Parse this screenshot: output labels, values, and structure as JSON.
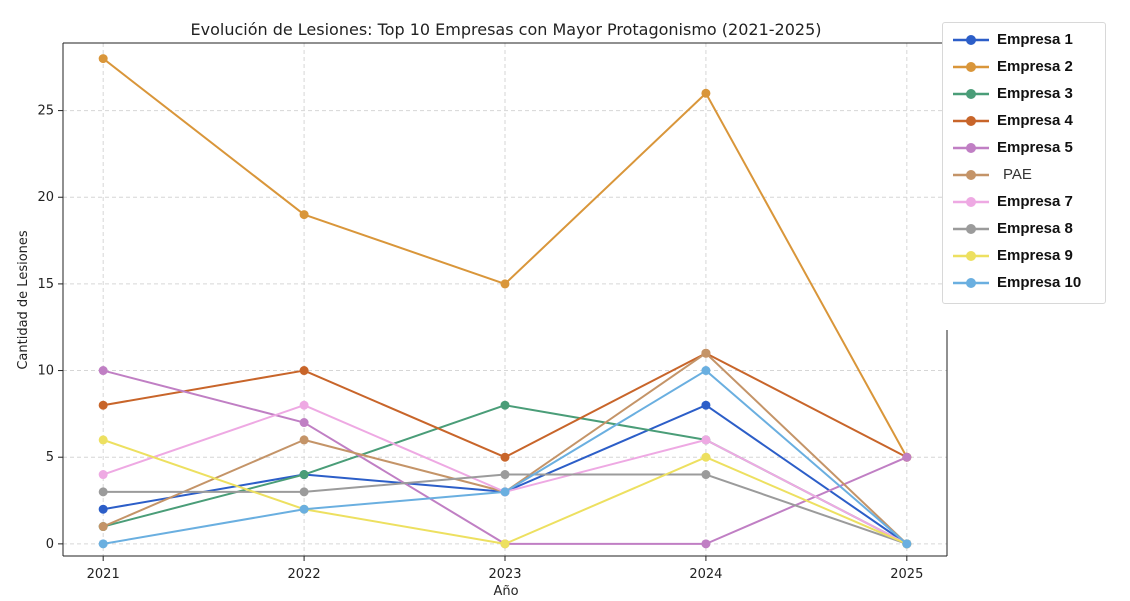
{
  "chart_data": {
    "type": "line",
    "title": "Evolución de Lesiones: Top 10 Empresas con Mayor Protagonismo (2021-2025)",
    "xlabel": "Año",
    "ylabel": "Cantidad de Lesiones",
    "x": [
      2021,
      2022,
      2023,
      2024,
      2025
    ],
    "x_tick_labels": [
      "2021",
      "2022",
      "2023",
      "2024",
      "2025"
    ],
    "y_ticks": [
      0,
      5,
      10,
      15,
      20,
      25
    ],
    "y_tick_labels": [
      "0",
      "5",
      "10",
      "15",
      "20",
      "25"
    ],
    "ylim": [
      -0.7,
      28.9
    ],
    "xlim": [
      2020.8,
      2025.2
    ],
    "grid": true,
    "legend_position": "outside-right",
    "series": [
      {
        "name": "Empresa 1",
        "color": "#2c5ec8",
        "values": [
          2,
          4,
          3,
          8,
          0
        ]
      },
      {
        "name": "Empresa 2",
        "color": "#d9963a",
        "values": [
          28,
          19,
          15,
          26,
          5
        ]
      },
      {
        "name": "Empresa 3",
        "color": "#4a9d78",
        "values": [
          1,
          4,
          8,
          6,
          0
        ]
      },
      {
        "name": "Empresa 4",
        "color": "#c8652a",
        "values": [
          8,
          10,
          5,
          11,
          5
        ]
      },
      {
        "name": "Empresa 5",
        "color": "#c07fc4",
        "values": [
          10,
          7,
          0,
          0,
          5
        ]
      },
      {
        "name": "PAE",
        "color": "#c49468",
        "values": [
          1,
          6,
          3,
          11,
          0
        ]
      },
      {
        "name": "Empresa 7",
        "color": "#eea9e3",
        "values": [
          4,
          8,
          3,
          6,
          0
        ]
      },
      {
        "name": "Empresa 8",
        "color": "#9b9b9b",
        "values": [
          3,
          3,
          4,
          4,
          0
        ]
      },
      {
        "name": "Empresa 9",
        "color": "#ede060",
        "values": [
          6,
          2,
          0,
          5,
          0
        ]
      },
      {
        "name": "Empresa 10",
        "color": "#6aafe0",
        "values": [
          0,
          2,
          3,
          10,
          0
        ]
      }
    ]
  }
}
